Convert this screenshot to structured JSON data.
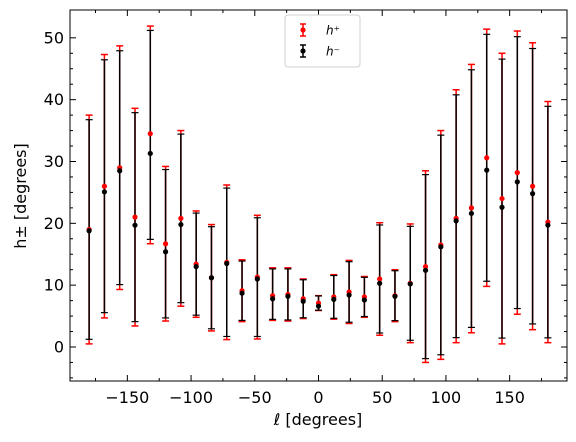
{
  "chart_data": {
    "type": "scatter",
    "title": "",
    "xlabel": "ℓ [degrees]",
    "ylabel": "h± [degrees]",
    "xlim": [
      -195,
      195
    ],
    "ylim": [
      -5.5,
      54.5
    ],
    "xticks": [
      -150,
      -100,
      -50,
      0,
      50,
      100,
      150
    ],
    "xtick_labels": [
      "−150",
      "−100",
      "−50",
      "0",
      "50",
      "100",
      "150"
    ],
    "yticks": [
      0,
      10,
      20,
      30,
      40,
      50
    ],
    "ytick_labels": [
      "0",
      "10",
      "20",
      "30",
      "40",
      "50"
    ],
    "grid": false,
    "legend_position": "top-center",
    "x": [
      -180,
      -168,
      -156,
      -144,
      -132,
      -120,
      -108,
      -96,
      -84,
      -72,
      -60,
      -48,
      -36,
      -24,
      -12,
      0,
      12,
      24,
      36,
      48,
      60,
      72,
      84,
      96,
      108,
      120,
      132,
      144,
      156,
      168,
      180
    ],
    "series": [
      {
        "name": "h⁺",
        "color": "#ff0000",
        "y": [
          19,
          26,
          29,
          21,
          34.5,
          16.7,
          20.8,
          13.4,
          11.2,
          13.7,
          9.1,
          11.3,
          8.3,
          8.5,
          7.8,
          7.1,
          8.1,
          8.9,
          8.1,
          11,
          8.3,
          10.3,
          13,
          16.5,
          20.8,
          22.5,
          30.6,
          24,
          28.2,
          26,
          20.2
        ],
        "err_low": [
          18.5,
          21.3,
          19.7,
          17.6,
          17.8,
          12.5,
          14.2,
          8.6,
          8.6,
          12.5,
          5,
          10,
          4,
          4.3,
          3.2,
          1.2,
          3.6,
          5.1,
          3.3,
          9.1,
          4.2,
          9.6,
          15.5,
          18.5,
          20.1,
          20.2,
          20.8,
          23.5,
          22.9,
          23.2,
          19.5
        ],
        "err_high": [
          18.5,
          21.3,
          19.7,
          17.6,
          17.4,
          12.5,
          14.2,
          8.6,
          8.6,
          12.5,
          5,
          10,
          4.5,
          4.3,
          3.2,
          1.2,
          3.6,
          5.1,
          3.3,
          9.1,
          4.2,
          9.6,
          15.5,
          18.5,
          20.8,
          23.2,
          20.8,
          23.5,
          22.9,
          23.2,
          19.5
        ]
      },
      {
        "name": "h⁻",
        "color": "#000000",
        "y": [
          18.8,
          25.1,
          28.5,
          19.7,
          31.3,
          15.4,
          19.8,
          13,
          11.2,
          13.5,
          8.7,
          11,
          7.8,
          8.2,
          7.4,
          6.6,
          7.7,
          8.4,
          7.6,
          10.3,
          8.2,
          10.2,
          12.4,
          16.2,
          20.4,
          21.6,
          28.6,
          22.6,
          26.7,
          24.8,
          19.7
        ]
      }
    ]
  }
}
